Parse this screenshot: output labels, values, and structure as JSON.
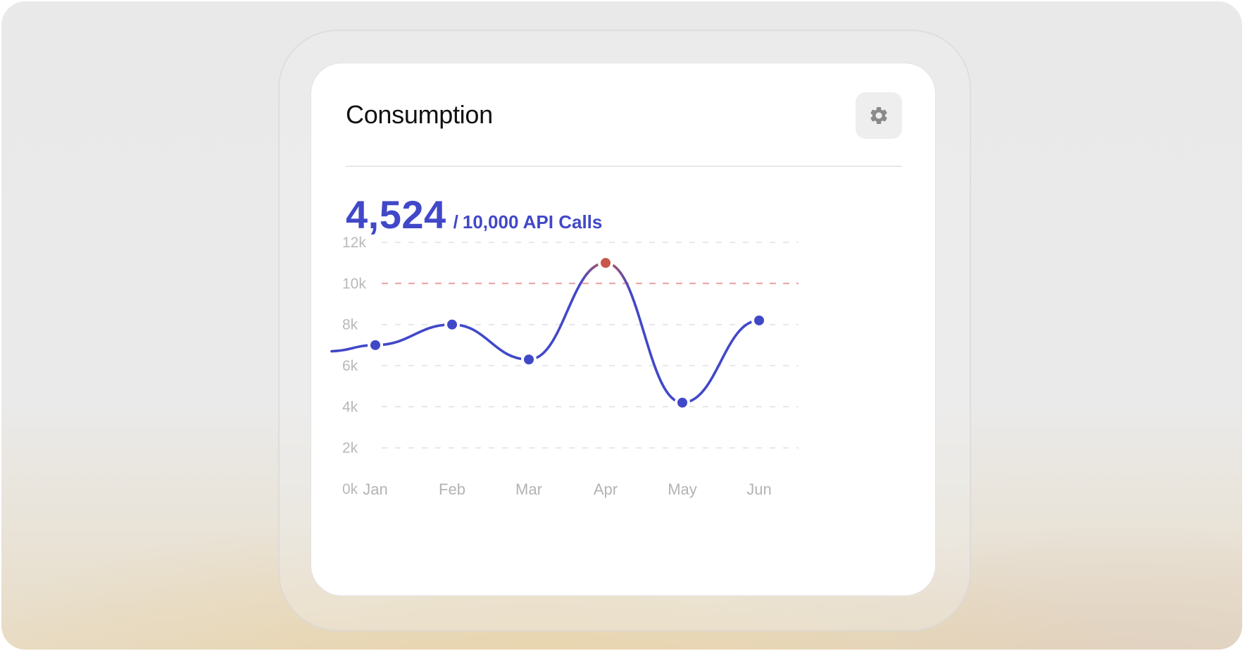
{
  "card": {
    "title": "Consumption",
    "settings_icon": "gear-icon"
  },
  "metric": {
    "value": "4,524",
    "separator": "/",
    "limit_text": "10,000 API Calls"
  },
  "colors": {
    "accent": "#4148c8",
    "over_limit": "#c8574b",
    "limit_line": "#e79a9a",
    "gridline": "#e1e1e1"
  },
  "chart_data": {
    "type": "line",
    "categories": [
      "Jan",
      "Feb",
      "Mar",
      "Apr",
      "May",
      "Jun"
    ],
    "values": [
      7000,
      8000,
      6300,
      11000,
      4200,
      8200
    ],
    "y_ticks": [
      "0k",
      "2k",
      "4k",
      "6k",
      "8k",
      "10k",
      "12k"
    ],
    "ylim": [
      0,
      12000
    ],
    "limit": 10000,
    "grid": true,
    "title": "",
    "xlabel": "",
    "ylabel": ""
  }
}
